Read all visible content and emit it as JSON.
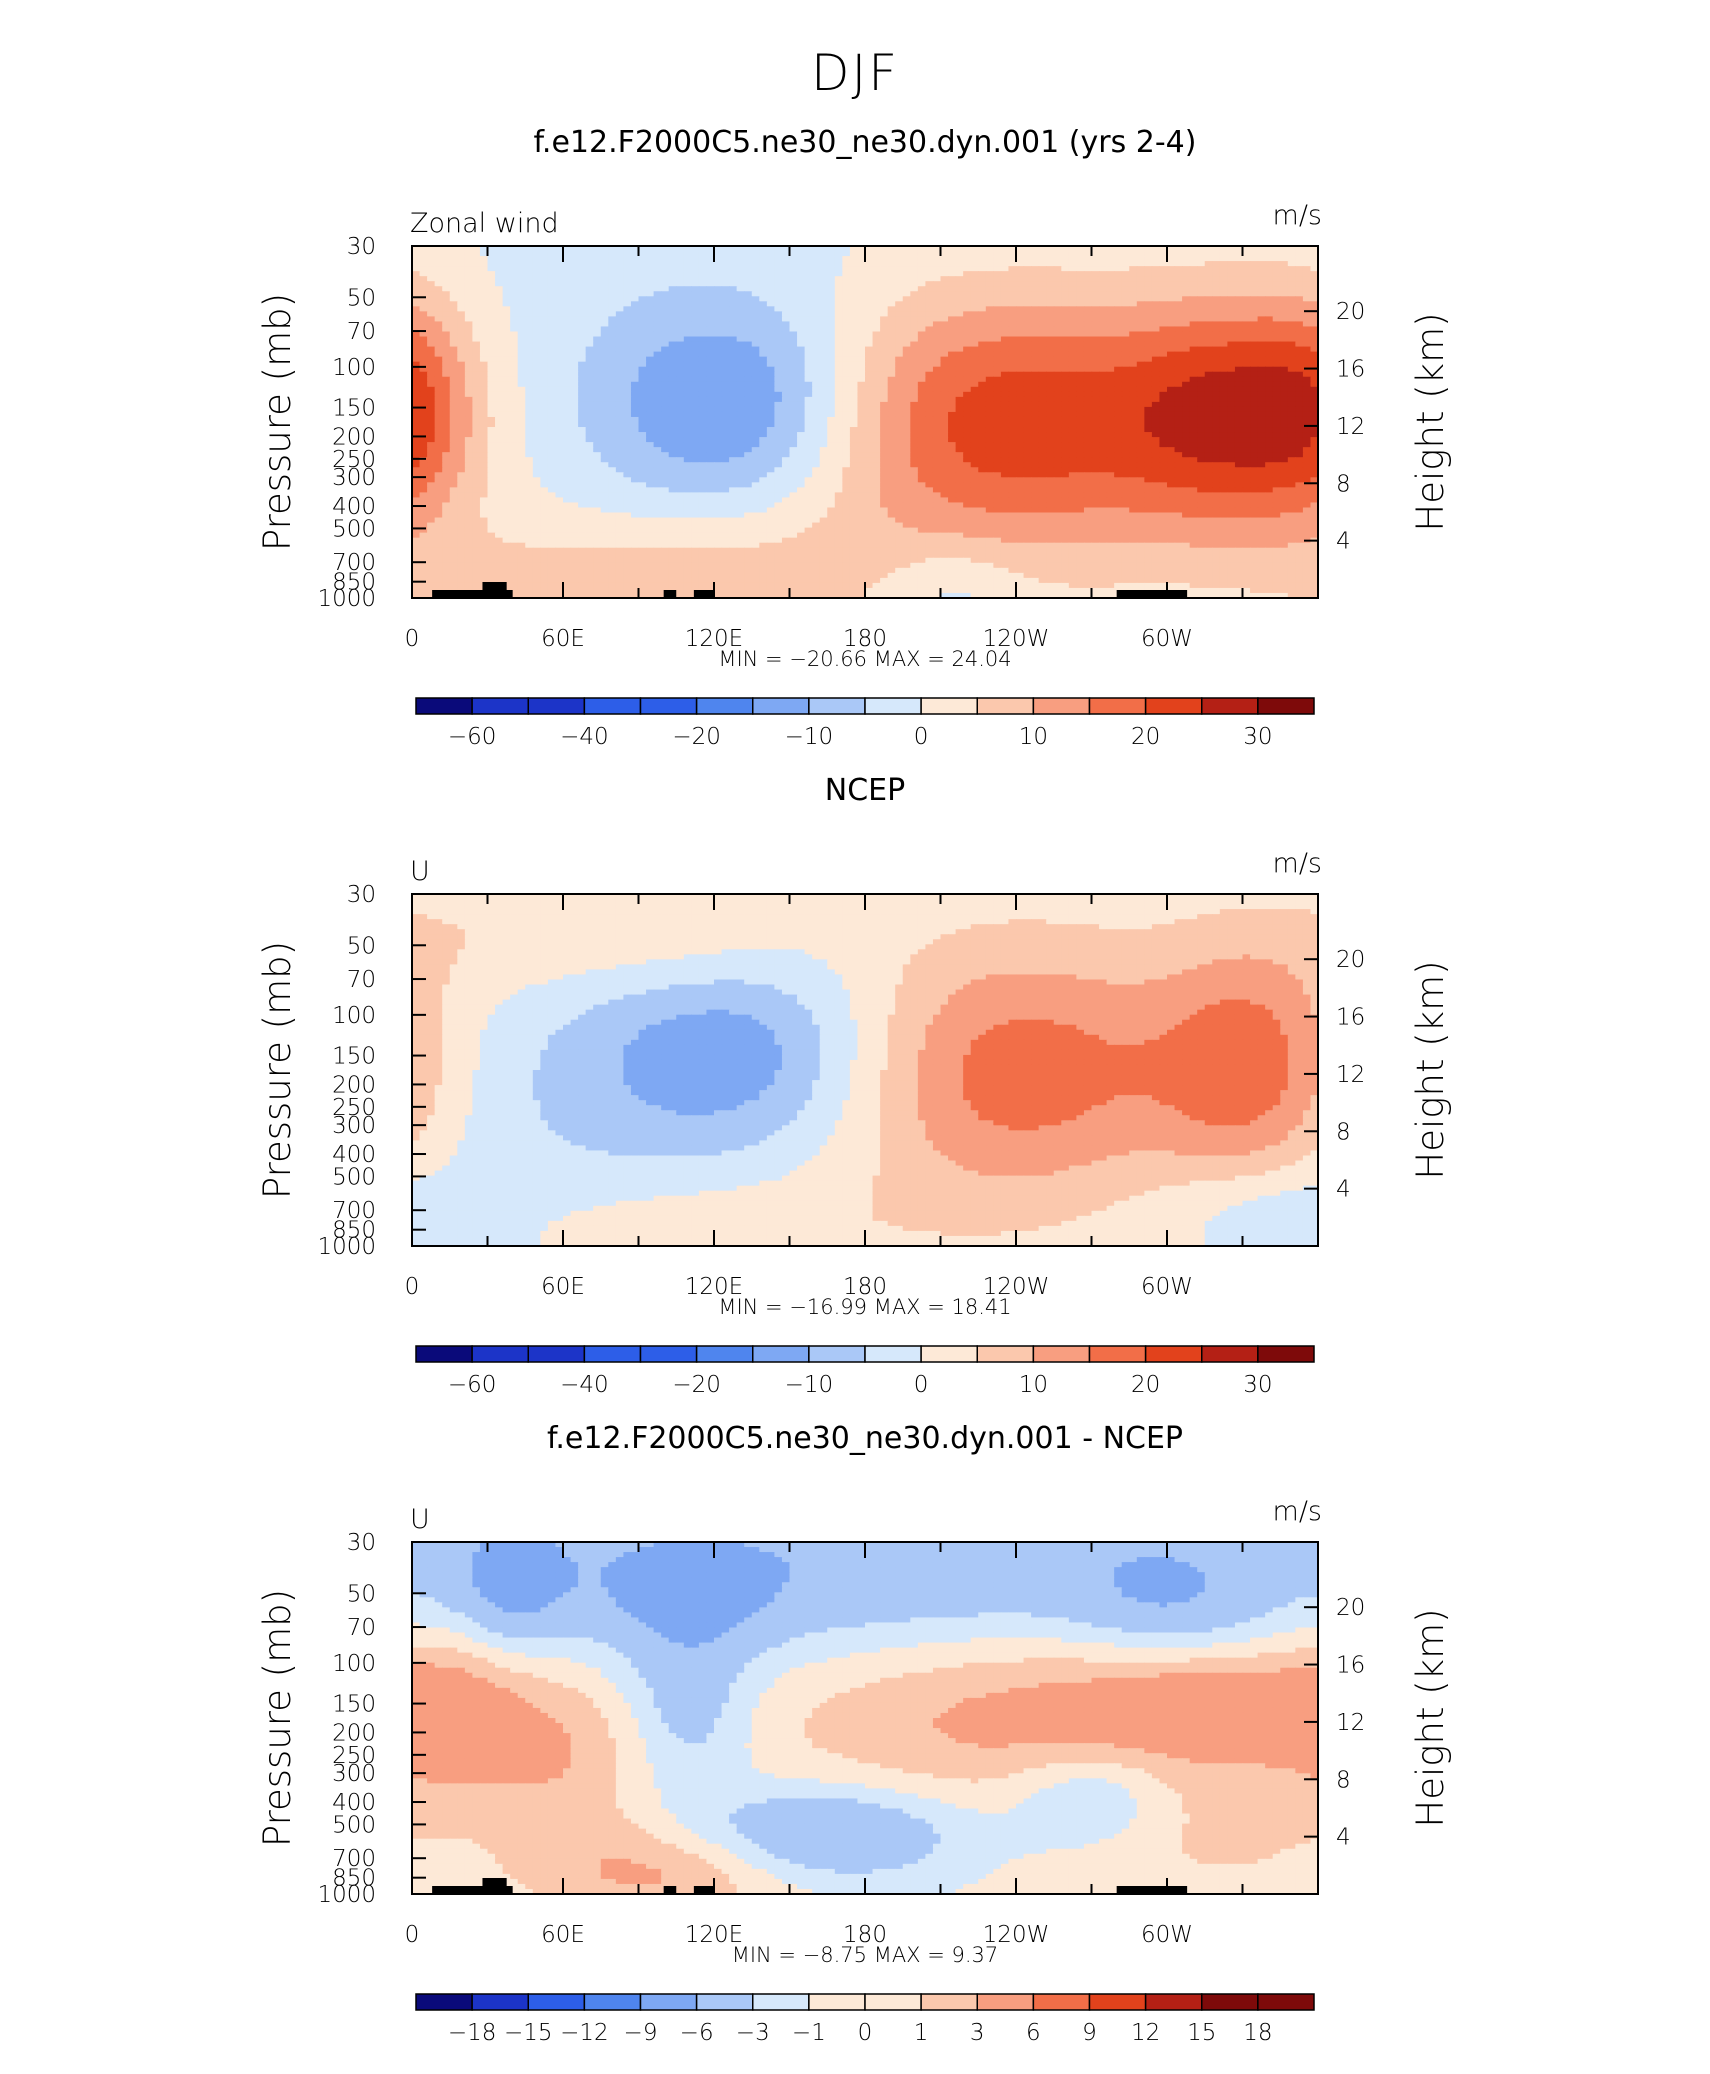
{
  "title": "DJF",
  "colors": {
    "standard": [
      "#0a0a7a",
      "#1c34c8",
      "#2d5ee8",
      "#4f85ee",
      "#7ea8f3",
      "#aac8f7",
      "#d6e8fb",
      "#fde9d7",
      "#fbc8ad",
      "#f89e80",
      "#f26e48",
      "#e2421c",
      "#b42015",
      "#7e0a0a"
    ],
    "difference": [
      "#0a0a7a",
      "#1c34c8",
      "#2d5ee8",
      "#4f85ee",
      "#7ea8f3",
      "#aac8f7",
      "#d6e8fb",
      "#fde9d7",
      "#fbc8ad",
      "#f89e80",
      "#f26e48",
      "#e2421c",
      "#b42015",
      "#7e0a0a"
    ]
  },
  "chart_data": [
    {
      "type": "heatmap",
      "title": "f.e12.F2000C5.ne30_ne30.dyn.001 (yrs 2-4)",
      "left_label": "Zonal wind",
      "units": "m/s",
      "ylabel": "Pressure (mb)",
      "y2label": "Height (km)",
      "x_ticks": [
        "0",
        "60E",
        "120E",
        "180",
        "120W",
        "60W"
      ],
      "y_ticks": [
        "30",
        "50",
        "70",
        "100",
        "150",
        "200",
        "250",
        "300",
        "400",
        "500",
        "700",
        "850",
        "1000"
      ],
      "y2_ticks": [
        "20",
        "16",
        "12",
        "8",
        "4"
      ],
      "stats": "MIN = −20.66   MAX =   24.04",
      "colorbar_labels": [
        "−60",
        "−40",
        "−20",
        "−10",
        "0",
        "10",
        "20",
        "30"
      ],
      "field": {
        "bg": 0,
        "blobs": [
          {
            "lon": 130,
            "p": 150,
            "sx": 40,
            "sy": 2.1,
            "a": -19
          },
          {
            "lon": 235,
            "p": 170,
            "sx": 62,
            "sy": 2.6,
            "a": 24
          },
          {
            "lon": 330,
            "p": 160,
            "sx": 32,
            "sy": 2.3,
            "a": 20
          },
          {
            "lon": 118,
            "p": 800,
            "sx": 55,
            "sy": 1.6,
            "a": 7
          },
          {
            "lon": 40,
            "p": 900,
            "sx": 40,
            "sy": 1.5,
            "a": 4
          },
          {
            "lon": 215,
            "p": 900,
            "sx": 20,
            "sy": 1.4,
            "a": -6
          },
          {
            "lon": 0,
            "p": 150,
            "sx": 18,
            "sy": 2.2,
            "a": 5
          },
          {
            "lon": 360,
            "p": 150,
            "sx": 18,
            "sy": 2.2,
            "a": 5
          },
          {
            "lon": 180,
            "p": 40,
            "sx": 160,
            "sy": 2.5,
            "a": -2
          }
        ]
      },
      "land": [
        [
          8,
          32
        ],
        [
          28,
          40
        ],
        [
          100,
          105
        ],
        [
          112,
          120
        ],
        [
          280,
          308
        ]
      ]
    },
    {
      "type": "heatmap",
      "title": "NCEP",
      "left_label": "U",
      "units": "m/s",
      "ylabel": "Pressure (mb)",
      "y2label": "Height (km)",
      "x_ticks": [
        "0",
        "60E",
        "120E",
        "180",
        "120W",
        "60W"
      ],
      "y_ticks": [
        "30",
        "50",
        "70",
        "100",
        "150",
        "200",
        "250",
        "300",
        "400",
        "500",
        "700",
        "850",
        "1000"
      ],
      "y2_ticks": [
        "20",
        "16",
        "12",
        "8",
        "4"
      ],
      "stats": "MIN = −16.99   MAX =   18.41",
      "colorbar_labels": [
        "−60",
        "−40",
        "−20",
        "−10",
        "0",
        "10",
        "20",
        "30"
      ],
      "field": {
        "bg": 0.6,
        "blobs": [
          {
            "lon": 130,
            "p": 150,
            "sx": 45,
            "sy": 2.0,
            "a": -14
          },
          {
            "lon": 240,
            "p": 180,
            "sx": 52,
            "sy": 2.5,
            "a": 18
          },
          {
            "lon": 335,
            "p": 170,
            "sx": 28,
            "sy": 2.4,
            "a": 17
          },
          {
            "lon": 40,
            "p": 300,
            "sx": 70,
            "sy": 2.8,
            "a": -4
          },
          {
            "lon": 120,
            "p": 800,
            "sx": 60,
            "sy": 1.4,
            "a": 4
          },
          {
            "lon": 340,
            "p": 700,
            "sx": 30,
            "sy": 1.4,
            "a": -6
          },
          {
            "lon": 40,
            "p": 45,
            "sx": 40,
            "sy": 1.5,
            "a": 4
          },
          {
            "lon": 110,
            "p": 45,
            "sx": 35,
            "sy": 1.5,
            "a": 4
          }
        ]
      },
      "land": []
    },
    {
      "type": "heatmap",
      "title": "f.e12.F2000C5.ne30_ne30.dyn.001 - NCEP",
      "left_label": "U",
      "units": "m/s",
      "ylabel": "Pressure (mb)",
      "y2label": "Height (km)",
      "x_ticks": [
        "0",
        "60E",
        "120E",
        "180",
        "120W",
        "60W"
      ],
      "y_ticks": [
        "30",
        "50",
        "70",
        "100",
        "150",
        "200",
        "250",
        "300",
        "400",
        "500",
        "700",
        "850",
        "1000"
      ],
      "y2_ticks": [
        "20",
        "16",
        "12",
        "8",
        "4"
      ],
      "stats": "MIN =   −8.75   MAX =    9.37",
      "colorbar_labels": [
        "−18",
        "−15",
        "−12",
        "−9",
        "−6",
        "−3",
        "−1",
        "0",
        "1",
        "3",
        "6",
        "9",
        "12",
        "15",
        "18"
      ],
      "field": {
        "bg": -0.5,
        "blobs": [
          {
            "lon": 180,
            "p": 40,
            "sx": 200,
            "sy": 2.0,
            "a": -5
          },
          {
            "lon": 40,
            "p": 45,
            "sx": 15,
            "sy": 1.6,
            "a": -4
          },
          {
            "lon": 110,
            "p": 50,
            "sx": 25,
            "sy": 1.5,
            "a": -3
          },
          {
            "lon": 300,
            "p": 55,
            "sx": 25,
            "sy": 1.5,
            "a": -3
          },
          {
            "lon": 260,
            "p": 160,
            "sx": 80,
            "sy": 1.9,
            "a": 5
          },
          {
            "lon": 320,
            "p": 150,
            "sx": 30,
            "sy": 1.4,
            "a": 3
          },
          {
            "lon": 15,
            "p": 160,
            "sx": 22,
            "sy": 1.8,
            "a": 4
          },
          {
            "lon": 60,
            "p": 250,
            "sx": 25,
            "sy": 2.0,
            "a": 3
          },
          {
            "lon": 110,
            "p": 160,
            "sx": 18,
            "sy": 1.8,
            "a": -4
          },
          {
            "lon": 165,
            "p": 550,
            "sx": 38,
            "sy": 1.4,
            "a": -6
          },
          {
            "lon": 270,
            "p": 380,
            "sx": 22,
            "sy": 1.4,
            "a": -4
          },
          {
            "lon": 100,
            "p": 800,
            "sx": 35,
            "sy": 1.4,
            "a": 4
          },
          {
            "lon": 320,
            "p": 600,
            "sx": 35,
            "sy": 1.6,
            "a": 1.5
          }
        ]
      },
      "land": [
        [
          8,
          32
        ],
        [
          28,
          40
        ],
        [
          100,
          105
        ],
        [
          112,
          120
        ],
        [
          280,
          308
        ]
      ]
    }
  ]
}
